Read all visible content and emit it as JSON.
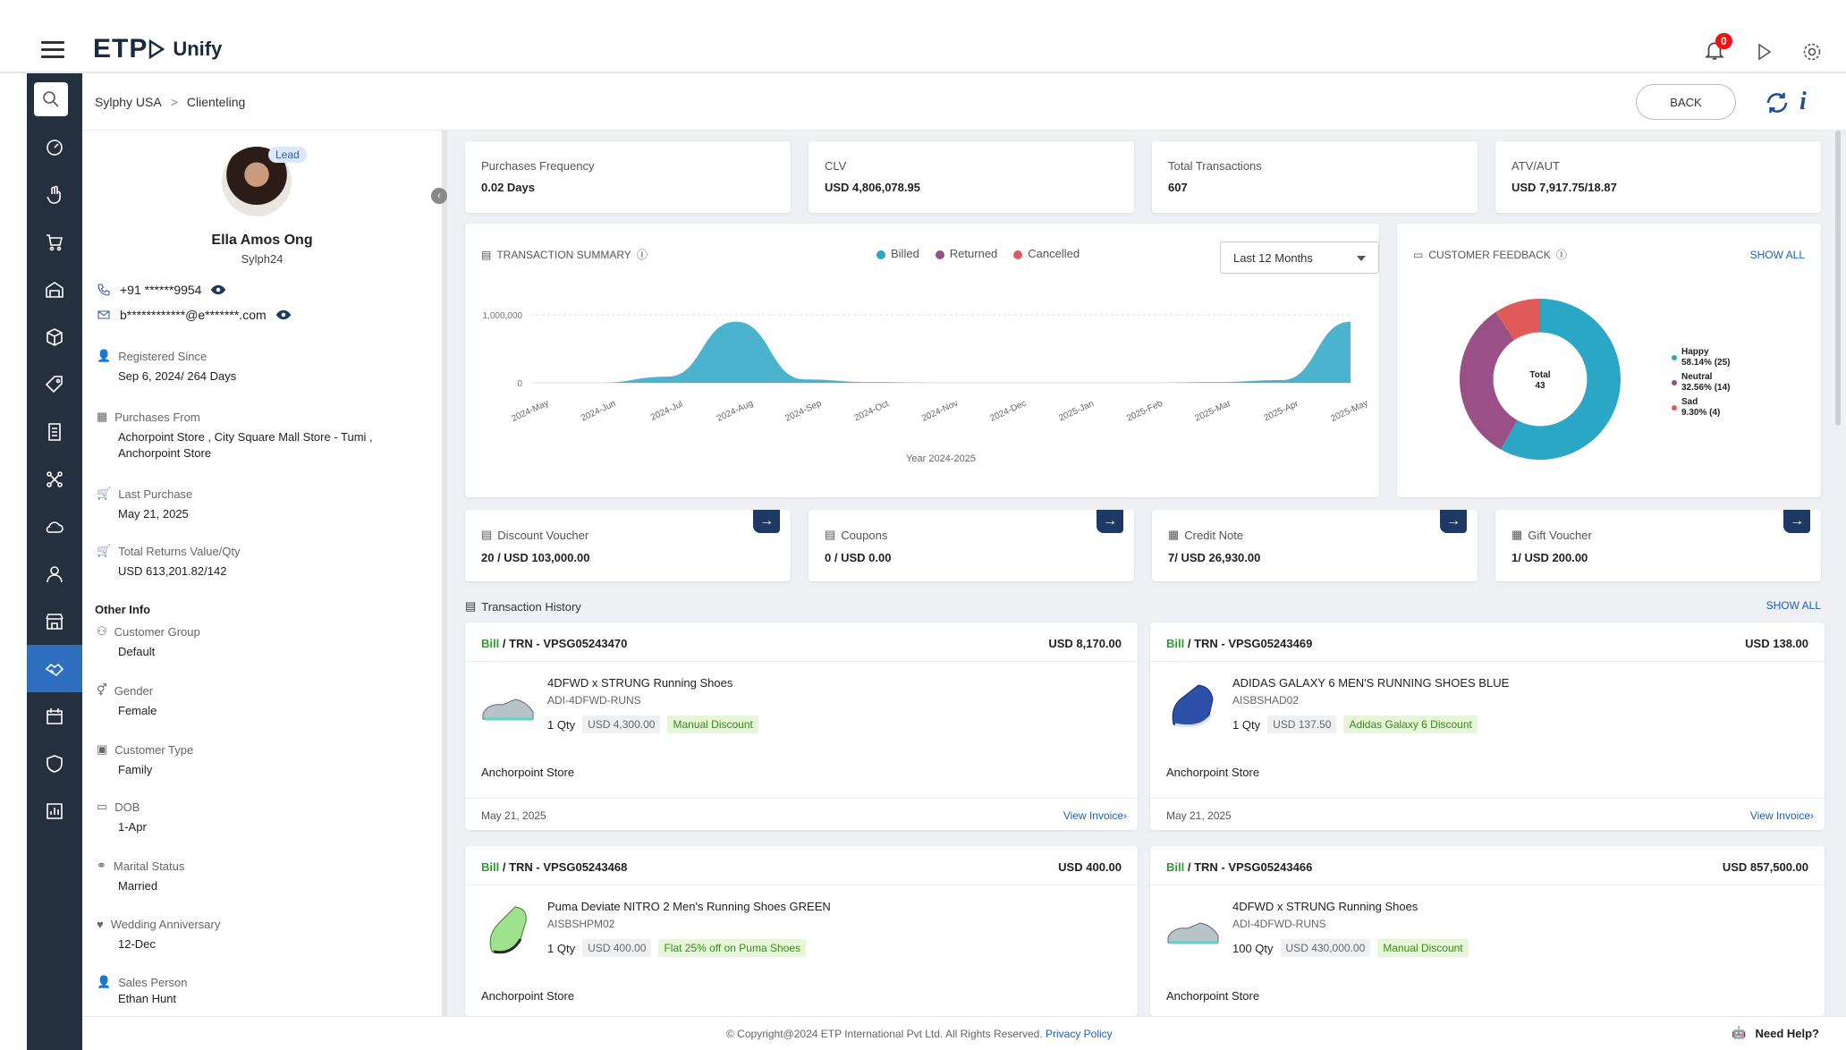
{
  "app": {
    "logo": "ETP",
    "product": "Unify",
    "notification_count": "0"
  },
  "breadcrumb": {
    "root": "Sylphy USA",
    "current": "Clienteling"
  },
  "actions": {
    "back_label": "BACK"
  },
  "profile": {
    "badge": "Lead",
    "name": "Ella Amos Ong",
    "code": "Sylph24",
    "phone": "+91 ******9954",
    "email": "b************@e*******.com",
    "registered_label": "Registered Since",
    "registered_value": "Sep 6, 2024/ 264 Days",
    "purchases_from_label": "Purchases From",
    "purchases_from_value": "Achorpoint Store , City Square Mall Store - Tumi , Anchorpoint Store",
    "last_purchase_label": "Last Purchase",
    "last_purchase_value": "May 21, 2025",
    "returns_label": "Total Returns Value/Qty",
    "returns_value": "USD 613,201.82/142",
    "other_info": "Other Info",
    "customer_group_label": "Customer Group",
    "customer_group_value": "Default",
    "gender_label": "Gender",
    "gender_value": "Female",
    "customer_type_label": "Customer Type",
    "customer_type_value": "Family",
    "dob_label": "DOB",
    "dob_value": "1-Apr",
    "marital_label": "Marital Status",
    "marital_value": "Married",
    "anniversary_label": "Wedding Anniversary",
    "anniversary_value": "12-Dec",
    "sales_person_label": "Sales Person",
    "sales_person_value": "Ethan Hunt"
  },
  "stats": [
    {
      "label": "Purchases Frequency",
      "value": "0.02 Days"
    },
    {
      "label": "CLV",
      "value": "USD 4,806,078.95"
    },
    {
      "label": "Total Transactions",
      "value": "607"
    },
    {
      "label": "ATV/AUT",
      "value": "USD 7,917.75/18.87"
    }
  ],
  "transaction_summary": {
    "title": "TRANSACTION SUMMARY",
    "legend": [
      "Billed",
      "Returned",
      "Cancelled"
    ],
    "legend_colors": [
      "#2ba6c4",
      "#9a4f86",
      "#e05a5a"
    ],
    "period": "Last 12 Months"
  },
  "chart_data": [
    {
      "type": "area",
      "x": [
        "2024-May",
        "2024-Jun",
        "2024-Jul",
        "2024-Aug",
        "2024-Sep",
        "2024-Oct",
        "2024-Nov",
        "2024-Dec",
        "2025-Jan",
        "2025-Feb",
        "2025-Mar",
        "2025-Apr",
        "2025-May"
      ],
      "series": [
        {
          "name": "Billed",
          "values": [
            0,
            0,
            90000,
            900000,
            50000,
            10000,
            0,
            0,
            0,
            0,
            10000,
            40000,
            900000
          ]
        }
      ],
      "yticks": [
        "1,000,000",
        "0"
      ],
      "ylim": [
        0,
        1000000
      ],
      "xlabel": "Year 2024-2025",
      "grid": true
    },
    {
      "type": "pie",
      "categories": [
        "Happy",
        "Neutral",
        "Sad"
      ],
      "values": [
        58.14,
        32.56,
        9.3
      ],
      "labels": [
        "58.14% (25)",
        "32.56% (14)",
        "9.30% (4)"
      ],
      "center_label": "Total",
      "center_value": "43"
    }
  ],
  "feedback": {
    "title": "CUSTOMER FEEDBACK",
    "show_all": "SHOW ALL",
    "colors": [
      "#2ba6c4",
      "#9a4f86",
      "#e05a5a"
    ]
  },
  "wallet": [
    {
      "label": "Discount Voucher",
      "value": "20 / USD 103,000.00"
    },
    {
      "label": "Coupons",
      "value": "0 / USD 0.00"
    },
    {
      "label": "Credit Note",
      "value": "7/ USD 26,930.00"
    },
    {
      "label": "Gift Voucher",
      "value": "1/ USD 200.00"
    }
  ],
  "history": {
    "title": "Transaction History",
    "show_all": "SHOW ALL",
    "bill_word": "Bill",
    "view_invoice": "View Invoice›",
    "items": [
      {
        "trn": " / TRN - VPSG05243470",
        "amount": "USD 8,170.00",
        "product": "4DFWD x STRUNG Running Shoes",
        "sku": "ADI-4DFWD-RUNS",
        "qty": "1 Qty",
        "price": "USD 4,300.00",
        "discount": "Manual Discount",
        "store": "Anchorpoint Store",
        "date": "May 21, 2025",
        "shoe": "grey"
      },
      {
        "trn": " / TRN - VPSG05243469",
        "amount": "USD 138.00",
        "product": "ADIDAS GALAXY 6 MEN'S RUNNING SHOES BLUE",
        "sku": "AISBSHAD02",
        "qty": "1 Qty",
        "price": "USD 137.50",
        "discount": "Adidas Galaxy 6 Discount",
        "store": "Anchorpoint Store",
        "date": "May 21, 2025",
        "shoe": "blue"
      },
      {
        "trn": " / TRN - VPSG05243468",
        "amount": "USD 400.00",
        "product": "Puma Deviate NITRO 2 Men's Running Shoes GREEN",
        "sku": "AISBSHPM02",
        "qty": "1 Qty",
        "price": "USD 400.00",
        "discount": "Flat 25% off on Puma Shoes",
        "store": "Anchorpoint Store",
        "date": "",
        "shoe": "green"
      },
      {
        "trn": " / TRN - VPSG05243466",
        "amount": "USD 857,500.00",
        "product": "4DFWD x STRUNG Running Shoes",
        "sku": "ADI-4DFWD-RUNS",
        "qty": "100 Qty",
        "price": "USD 430,000.00",
        "discount": "Manual Discount",
        "store": "Anchorpoint Store",
        "date": "",
        "shoe": "grey"
      }
    ]
  },
  "footer": {
    "copyright": "© Copyright@2024 ETP International Pvt Ltd. All Rights Reserved.",
    "privacy": "Privacy Policy",
    "help": "Need Help?"
  }
}
